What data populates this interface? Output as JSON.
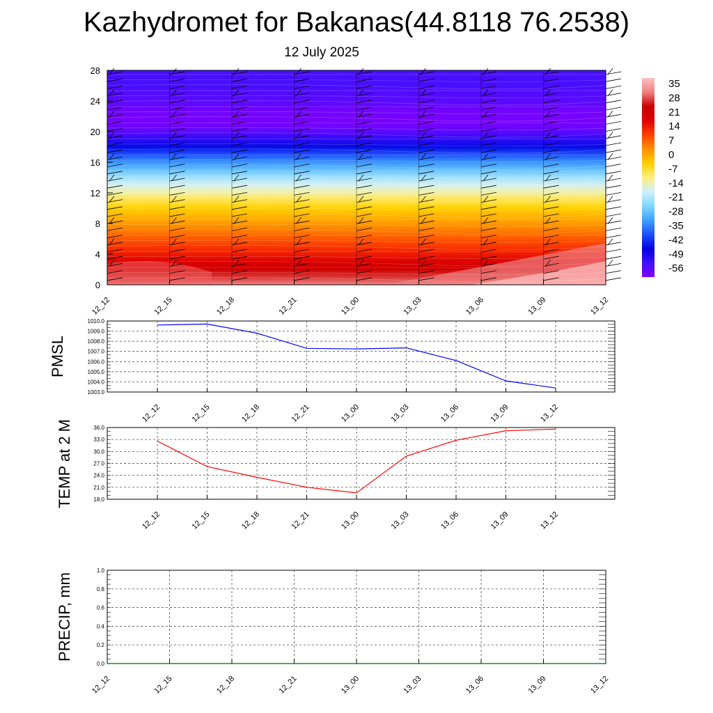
{
  "title": "Kazhydromet for Bakanas(44.8118 76.2538)",
  "subtitle": "12 July 2025",
  "chart_data": [
    {
      "type": "heatmap",
      "name_role": "cross-section",
      "x_ticks": [
        "12_12",
        "12_15",
        "12_18",
        "12_21",
        "13_00",
        "13_03",
        "13_06",
        "13_09",
        "13_12"
      ],
      "y_ticks": [
        "0",
        "4",
        "8",
        "12",
        "16",
        "20",
        "24",
        "28"
      ],
      "ylim": [
        0,
        28
      ],
      "colorbar_labels": [
        "35",
        "28",
        "21",
        "14",
        "7",
        "0",
        "-7",
        "-14",
        "-21",
        "-28",
        "-35",
        "-42",
        "-49",
        "-56"
      ],
      "colorbar_range": [
        -60,
        38
      ],
      "profile_levels": [
        0,
        1,
        2,
        3,
        4,
        5,
        6,
        7,
        8,
        9,
        10,
        11,
        12,
        13,
        14,
        15,
        16,
        17,
        18,
        19,
        20,
        21,
        22,
        23,
        24,
        25,
        26,
        27,
        28
      ],
      "profile_values": [
        31,
        27,
        22,
        18,
        14,
        11,
        8,
        5,
        2,
        -1,
        -4,
        -8,
        -13,
        -17,
        -22,
        -28,
        -33,
        -39,
        -45,
        -51,
        -56,
        -59,
        -59,
        -58,
        -56,
        -55,
        -54,
        -54,
        -54
      ],
      "palette": [
        "#8000ff",
        "#4010ff",
        "#0000e0",
        "#2050ff",
        "#40a0ff",
        "#80d8ff",
        "#d0f0ff",
        "#fff080",
        "#ffd000",
        "#ff9000",
        "#ff4000",
        "#e00000",
        "#c80000",
        "#f08080",
        "#ffc0c0"
      ],
      "wind_barbs": true
    },
    {
      "type": "line",
      "ylabel": "PMSL",
      "categories": [
        "12_12",
        "12_15",
        "12_18",
        "12_21",
        "13_00",
        "13_03",
        "13_06",
        "13_09",
        "13_12"
      ],
      "values": [
        1009.6,
        1009.7,
        1008.8,
        1007.3,
        1007.25,
        1007.35,
        1006.1,
        1004.1,
        1003.4
      ],
      "y_ticks": [
        "1010.0",
        "1009.0",
        "1008.0",
        "1007.0",
        "1006.0",
        "1005.0",
        "1004.0",
        "1003.0"
      ],
      "ylim": [
        1003,
        1010
      ],
      "grid": true,
      "color": "#0000ff"
    },
    {
      "type": "line",
      "ylabel": "TEMP at 2 M",
      "categories": [
        "12_12",
        "12_15",
        "12_18",
        "12_21",
        "13_00",
        "13_03",
        "13_06",
        "13_09",
        "13_12"
      ],
      "values": [
        32.6,
        26.2,
        23.5,
        21.0,
        19.6,
        28.8,
        32.8,
        35.2,
        35.6
      ],
      "y_ticks": [
        "36.0",
        "33.0",
        "30.0",
        "27.0",
        "24.0",
        "21.0",
        "18.0"
      ],
      "ylim": [
        18,
        36
      ],
      "grid": true,
      "color": "#ff0000"
    },
    {
      "type": "line",
      "ylabel": "PRECIP, mm",
      "x_ticks": [
        "12_12",
        "12_15",
        "12_18",
        "12_21",
        "13_00",
        "13_03",
        "13_06",
        "13_09",
        "13_12"
      ],
      "values": [
        0,
        0,
        0,
        0,
        0,
        0,
        0,
        0,
        0
      ],
      "y_ticks": [
        "1.0",
        "0.8",
        "0.6",
        "0.4",
        "0.2",
        "0.0"
      ],
      "ylim": [
        0,
        1
      ],
      "grid": true,
      "color": "#006400"
    }
  ]
}
